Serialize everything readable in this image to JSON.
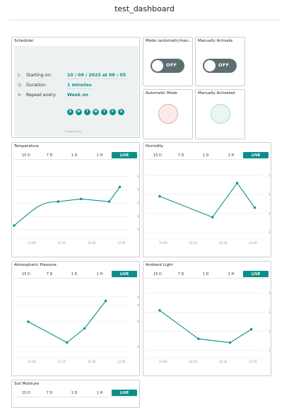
{
  "page": {
    "title": "test_dashboard"
  },
  "scheduler": {
    "title": "Scheduler",
    "rows": [
      {
        "label": "Starting on:",
        "value": "10 / 09 / 2023 at 08 : 05"
      },
      {
        "label": "Duration:",
        "value": "1 minutes"
      },
      {
        "label": "Repeat every:",
        "value": "Week on"
      }
    ],
    "days": [
      "S",
      "M",
      "T",
      "W",
      "T",
      "F",
      "S"
    ],
    "timezone": "Europe/Rome"
  },
  "mode_switch": {
    "title": "Mode (automatic/man...",
    "state": "OFF"
  },
  "manual_switch": {
    "title": "Manually Activate",
    "state": "OFF"
  },
  "automatic_led": {
    "title": "Automatic Mode",
    "color": "#e8a7a7"
  },
  "manual_led": {
    "title": "Manually Activated",
    "color": "#a9d8c7"
  },
  "accent_color": "#0b8f8a",
  "tabs": [
    "15 D",
    "7 D",
    "1 D",
    "1 H",
    "LIVE"
  ],
  "active_tab": "LIVE",
  "chart_data": [
    {
      "name": "temperature",
      "title": "Temperature",
      "type": "line",
      "x": [
        "12:00",
        "12:15",
        "12:30",
        "12:45"
      ],
      "y_ticks": [
        "39",
        "40",
        "41",
        "42",
        "43"
      ],
      "ylim": [
        38.5,
        43.5
      ],
      "points": [
        [
          11.9,
          39.3
        ],
        [
          12.15,
          41.1
        ],
        [
          12.28,
          41.3
        ],
        [
          12.44,
          41.1
        ],
        [
          12.5,
          42.2
        ]
      ],
      "color": "#0b8f8a"
    },
    {
      "name": "humidity",
      "title": "Humidity",
      "type": "line",
      "x": [
        "12:00",
        "12:15",
        "12:30",
        "12:45"
      ],
      "y_ticks": [
        "24",
        "25",
        "26",
        "27"
      ],
      "ylim": [
        23.8,
        27.3
      ],
      "points": [
        [
          11.98,
          25.9
        ],
        [
          12.28,
          24.8
        ],
        [
          12.42,
          26.6
        ],
        [
          12.52,
          25.3
        ]
      ],
      "color": "#0b8f8a"
    },
    {
      "name": "atmospheric_pressure",
      "title": "Atmospheric Pressure",
      "type": "line",
      "x": [
        "12:00",
        "12:15",
        "12:30",
        "12:45"
      ],
      "y_ticks": [
        "986.4",
        "986.7",
        "986.9",
        "987"
      ],
      "ylim": [
        986.3,
        987.1
      ],
      "points": [
        [
          11.98,
          986.7
        ],
        [
          12.2,
          986.45
        ],
        [
          12.3,
          986.62
        ],
        [
          12.42,
          986.95
        ]
      ],
      "color": "#0b8f8a"
    },
    {
      "name": "ambient_light",
      "title": "Ambient Light",
      "type": "line",
      "x": [
        "12:00",
        "12:15",
        "12:30",
        "12:45"
      ],
      "y_ticks": [
        "10000",
        "12000",
        "14000",
        "16000"
      ],
      "ylim": [
        9500,
        16500
      ],
      "points": [
        [
          11.98,
          14200
        ],
        [
          12.2,
          11200
        ],
        [
          12.38,
          10800
        ],
        [
          12.5,
          12200
        ]
      ],
      "color": "#0b8f8a"
    }
  ],
  "soil_moisture": {
    "title": "Soil Moisture"
  }
}
